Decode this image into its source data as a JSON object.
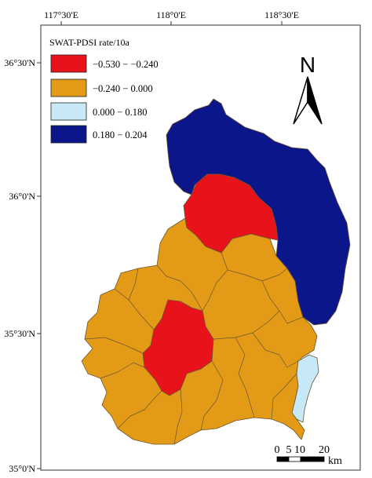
{
  "axes": {
    "top_ticks": [
      "117°30'E",
      "118°0'E",
      "118°30'E"
    ],
    "left_ticks": [
      "36°30'N",
      "36°0'N",
      "35°30'N",
      "35°0'N"
    ]
  },
  "legend": {
    "title": "SWAT-PDSI rate/10a",
    "items": [
      {
        "label": "−0.530 − −0.240",
        "color": "#e8121a"
      },
      {
        "label": "−0.240 − 0.000",
        "color": "#e39a17"
      },
      {
        "label": "0.000 − 0.180",
        "color": "#c6e8f7"
      },
      {
        "label": "0.180 − 0.204",
        "color": "#0b168a"
      }
    ]
  },
  "north_arrow": {
    "label": "N",
    "icon": "north-arrow-icon"
  },
  "scale_bar": {
    "ticks": [
      "0",
      "5",
      "10",
      "20"
    ],
    "unit": "km"
  },
  "colors": {
    "border": "#333333",
    "boundary": "#6b5530"
  }
}
